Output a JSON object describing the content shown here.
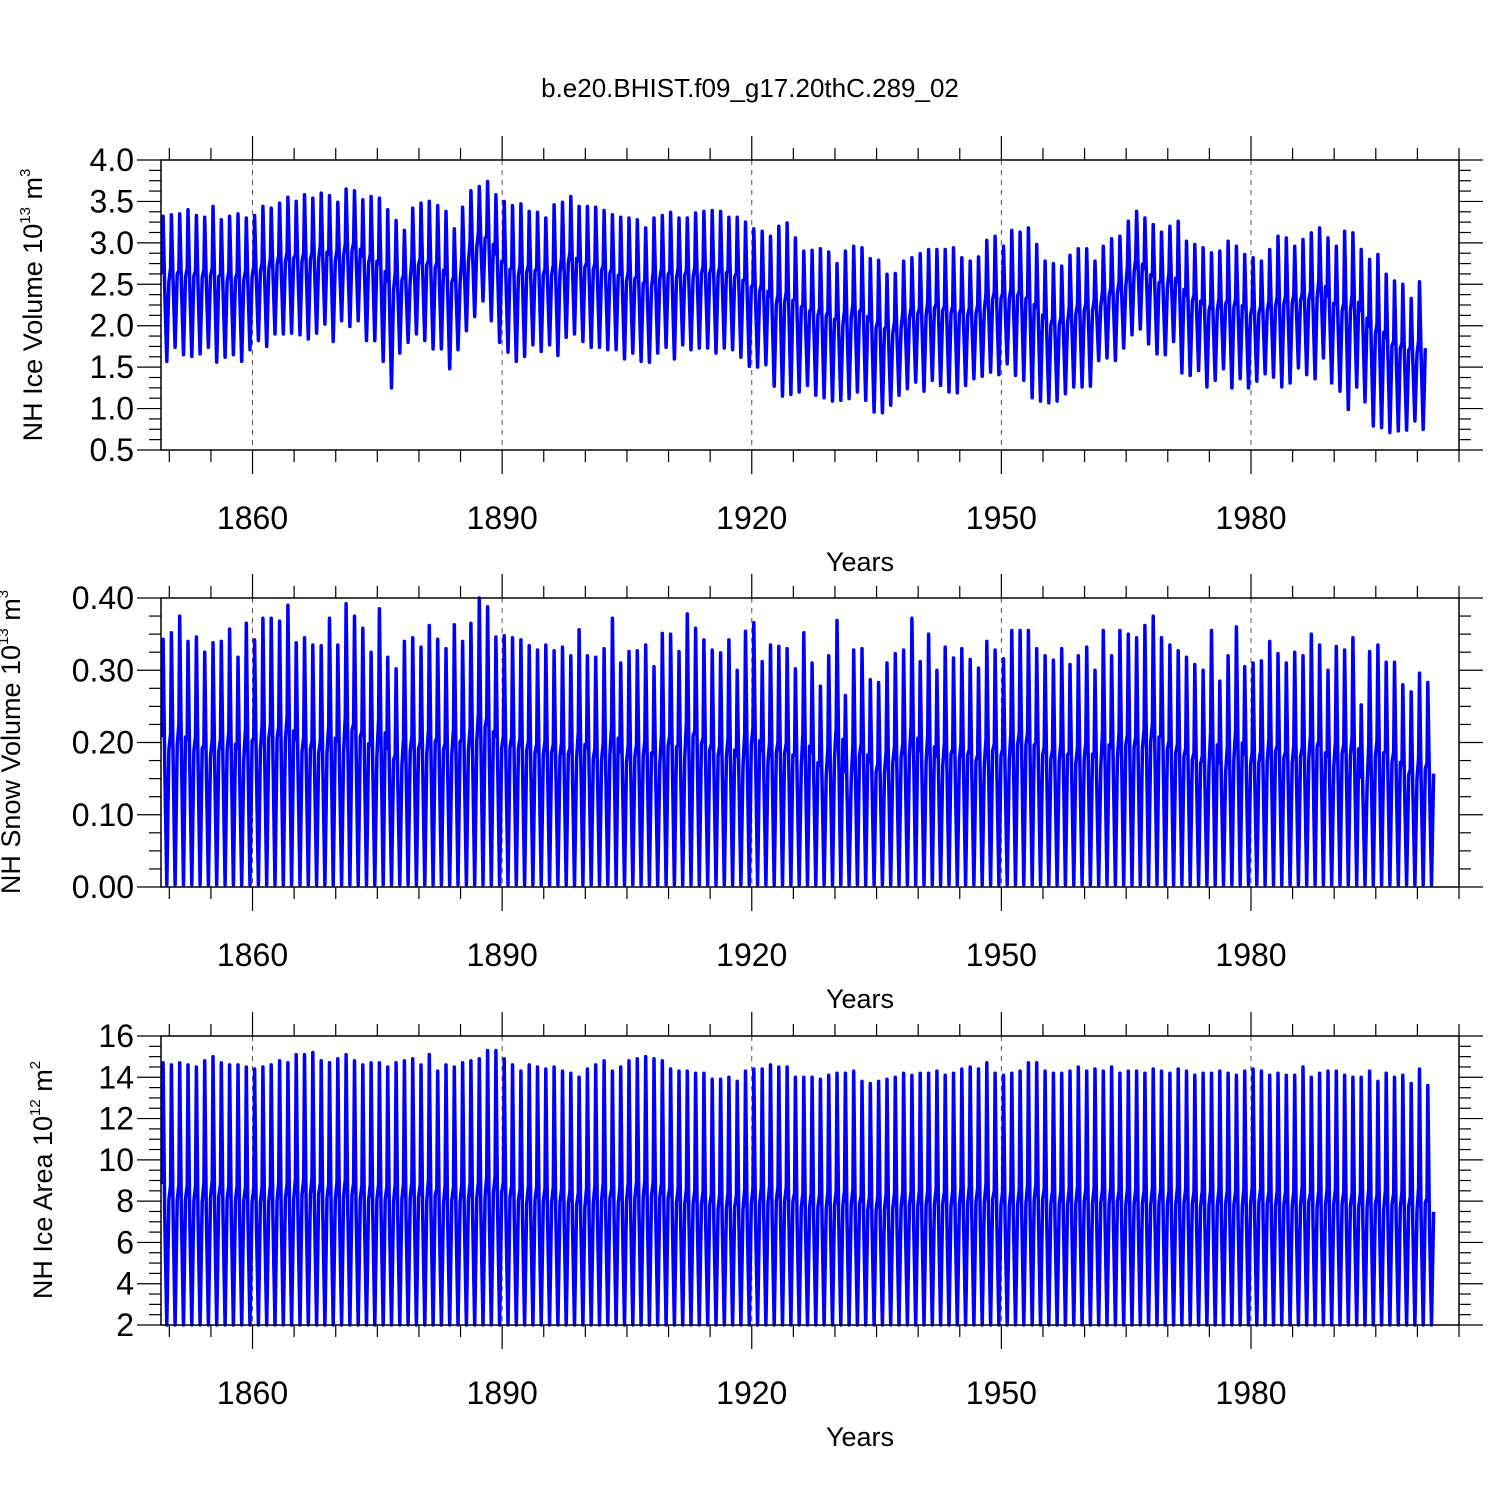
{
  "title": "b.e20.BHIST.f09_g17.20thC.289_02",
  "chart_data": [
    {
      "type": "line",
      "xlabel": "Years",
      "ylabel_prefix": "NH Ice Volume 10",
      "ylabel_exponent": "13",
      "ylabel_unit": " m",
      "ylabel_unit_exponent": "3",
      "xlim": [
        1849,
        2005
      ],
      "ylim": [
        0.5,
        4.0
      ],
      "xticks": [
        1860,
        1890,
        1920,
        1950,
        1980
      ],
      "yticks": [
        "0.5",
        "1.0",
        "1.5",
        "2.0",
        "2.5",
        "3.0",
        "3.5",
        "4.0"
      ],
      "grid": "dashed vertical lines at major x ticks",
      "line_color": "#0000ff",
      "annual_max": [
        3.32,
        3.34,
        3.35,
        3.4,
        3.33,
        3.31,
        3.44,
        3.28,
        3.32,
        3.35,
        3.3,
        3.33,
        3.44,
        3.42,
        3.48,
        3.55,
        3.5,
        3.58,
        3.54,
        3.6,
        3.57,
        3.49,
        3.65,
        3.63,
        3.52,
        3.56,
        3.54,
        3.4,
        3.27,
        3.15,
        3.42,
        3.48,
        3.5,
        3.45,
        3.38,
        3.17,
        3.43,
        3.63,
        3.68,
        3.74,
        3.58,
        3.5,
        3.45,
        3.47,
        3.38,
        3.37,
        3.3,
        3.46,
        3.49,
        3.56,
        3.44,
        3.44,
        3.43,
        3.39,
        3.34,
        3.31,
        3.3,
        3.28,
        3.18,
        3.3,
        3.33,
        3.37,
        3.3,
        3.3,
        3.36,
        3.38,
        3.39,
        3.38,
        3.31,
        3.31,
        3.25,
        3.17,
        3.14,
        3.08,
        3.2,
        3.24,
        3.06,
        2.9,
        2.91,
        2.93,
        2.89,
        2.75,
        2.9,
        2.96,
        2.94,
        2.81,
        2.79,
        2.62,
        2.63,
        2.78,
        2.82,
        2.87,
        2.92,
        2.92,
        2.92,
        2.94,
        2.82,
        2.78,
        2.83,
        3.03,
        3.08,
        2.96,
        3.15,
        3.13,
        3.18,
        2.98,
        2.78,
        2.75,
        2.72,
        2.85,
        2.93,
        2.93,
        2.78,
        2.96,
        3.05,
        3.08,
        3.26,
        3.38,
        3.3,
        3.22,
        3.13,
        3.2,
        3.26,
        3.02,
        2.98,
        2.94,
        2.88,
        2.9,
        3.02,
        2.96,
        2.86,
        2.82,
        2.78,
        2.92,
        3.08,
        3.06,
        2.96,
        3.04,
        3.12,
        3.18,
        3.06,
        2.96,
        3.14,
        3.12,
        2.92,
        2.8,
        2.86,
        2.62,
        2.54,
        2.5,
        2.33,
        2.53,
        2.61,
        2.41
      ],
      "annual_min": [
        1.57,
        1.74,
        1.65,
        1.63,
        1.66,
        1.74,
        1.56,
        1.62,
        1.65,
        1.57,
        1.71,
        1.82,
        1.75,
        1.9,
        1.9,
        1.91,
        1.89,
        1.84,
        1.91,
        2.02,
        1.81,
        2.06,
        1.99,
        2.06,
        1.82,
        1.82,
        1.57,
        1.25,
        1.67,
        1.8,
        1.9,
        1.82,
        1.72,
        1.72,
        1.48,
        1.71,
        1.94,
        2.11,
        2.3,
        2.06,
        1.8,
        1.68,
        1.57,
        1.63,
        1.77,
        1.69,
        1.77,
        1.64,
        1.86,
        1.9,
        1.81,
        1.74,
        1.74,
        1.71,
        1.71,
        1.6,
        1.67,
        1.57,
        1.56,
        1.67,
        1.74,
        1.6,
        1.77,
        1.71,
        1.73,
        1.73,
        1.67,
        1.73,
        1.71,
        1.62,
        1.51,
        1.5,
        1.53,
        1.27,
        1.15,
        1.17,
        1.2,
        1.28,
        1.16,
        1.13,
        1.09,
        1.1,
        1.12,
        1.2,
        1.1,
        0.96,
        0.95,
        1.04,
        1.16,
        1.24,
        1.32,
        1.21,
        1.34,
        1.28,
        1.2,
        1.19,
        1.28,
        1.36,
        1.39,
        1.44,
        1.41,
        1.54,
        1.4,
        1.34,
        1.13,
        1.09,
        1.07,
        1.09,
        1.18,
        1.26,
        1.26,
        1.27,
        1.58,
        1.61,
        1.58,
        1.73,
        1.89,
        1.96,
        1.78,
        1.66,
        1.65,
        1.81,
        1.43,
        1.4,
        1.46,
        1.26,
        1.34,
        1.48,
        1.25,
        1.36,
        1.25,
        1.33,
        1.42,
        1.38,
        1.26,
        1.31,
        1.49,
        1.41,
        1.36,
        1.61,
        1.31,
        1.21,
        0.99,
        1.26,
        1.08,
        0.79,
        0.77,
        0.71,
        0.73,
        0.74,
        0.85,
        0.75
      ]
    },
    {
      "type": "line",
      "xlabel": "Years",
      "ylabel_prefix": "NH Snow Volume 10",
      "ylabel_exponent": "13",
      "ylabel_unit": " m",
      "ylabel_unit_exponent": "3",
      "xlim": [
        1849,
        2005
      ],
      "ylim": [
        0.0,
        0.4
      ],
      "xticks": [
        1860,
        1890,
        1920,
        1950,
        1980
      ],
      "yticks": [
        "0.00",
        "0.10",
        "0.20",
        "0.30",
        "0.40"
      ],
      "grid": "dashed vertical lines at major x ticks",
      "line_color": "#0000ff",
      "annual_max": [
        0.343,
        0.352,
        0.375,
        0.34,
        0.346,
        0.325,
        0.338,
        0.34,
        0.357,
        0.318,
        0.365,
        0.342,
        0.372,
        0.372,
        0.368,
        0.39,
        0.338,
        0.345,
        0.335,
        0.334,
        0.372,
        0.335,
        0.392,
        0.375,
        0.358,
        0.325,
        0.385,
        0.318,
        0.302,
        0.34,
        0.345,
        0.332,
        0.362,
        0.343,
        0.33,
        0.363,
        0.34,
        0.365,
        0.4,
        0.388,
        0.346,
        0.348,
        0.345,
        0.342,
        0.334,
        0.328,
        0.335,
        0.327,
        0.332,
        0.32,
        0.356,
        0.32,
        0.318,
        0.33,
        0.372,
        0.31,
        0.326,
        0.327,
        0.335,
        0.305,
        0.351,
        0.35,
        0.326,
        0.378,
        0.358,
        0.342,
        0.328,
        0.324,
        0.342,
        0.3,
        0.354,
        0.366,
        0.312,
        0.335,
        0.333,
        0.33,
        0.302,
        0.352,
        0.31,
        0.278,
        0.32,
        0.369,
        0.265,
        0.328,
        0.33,
        0.287,
        0.283,
        0.31,
        0.323,
        0.328,
        0.372,
        0.312,
        0.35,
        0.3,
        0.332,
        0.317,
        0.33,
        0.315,
        0.303,
        0.34,
        0.328,
        0.316,
        0.355,
        0.355,
        0.355,
        0.33,
        0.32,
        0.314,
        0.33,
        0.308,
        0.32,
        0.332,
        0.3,
        0.355,
        0.32,
        0.355,
        0.35,
        0.345,
        0.362,
        0.375,
        0.345,
        0.335,
        0.327,
        0.318,
        0.308,
        0.3,
        0.355,
        0.285,
        0.32,
        0.36,
        0.305,
        0.31,
        0.313,
        0.34,
        0.323,
        0.31,
        0.325,
        0.32,
        0.35,
        0.335,
        0.3,
        0.333,
        0.328,
        0.345,
        0.252,
        0.326,
        0.335,
        0.311,
        0.311,
        0.28,
        0.27,
        0.296,
        0.283
      ]
    },
    {
      "type": "line",
      "xlabel": "Years",
      "ylabel_prefix": "NH Ice Area 10",
      "ylabel_exponent": "12",
      "ylabel_unit": " m",
      "ylabel_unit_exponent": "2",
      "xlim": [
        1849,
        2005
      ],
      "ylim": [
        2,
        16
      ],
      "xticks": [
        1860,
        1890,
        1920,
        1950,
        1980
      ],
      "yticks": [
        "2",
        "4",
        "6",
        "8",
        "10",
        "12",
        "14",
        "16"
      ],
      "grid": "dashed vertical lines at major x ticks",
      "line_color": "#0000ff",
      "annual_max": [
        14.7,
        14.6,
        14.7,
        14.6,
        14.5,
        14.8,
        15.0,
        14.7,
        14.6,
        14.6,
        14.5,
        14.4,
        14.5,
        14.6,
        14.8,
        14.7,
        15.1,
        15.1,
        15.2,
        14.8,
        14.7,
        14.9,
        15.1,
        14.8,
        14.6,
        14.7,
        14.7,
        14.5,
        14.7,
        14.8,
        14.9,
        14.6,
        15.1,
        14.3,
        14.6,
        14.5,
        14.7,
        14.8,
        14.9,
        15.3,
        15.3,
        14.9,
        14.6,
        14.3,
        14.6,
        14.5,
        14.4,
        14.5,
        14.3,
        14.2,
        14.0,
        14.4,
        14.6,
        14.8,
        14.3,
        14.5,
        14.8,
        14.9,
        15.0,
        14.9,
        14.8,
        14.4,
        14.3,
        14.3,
        14.2,
        14.2,
        13.9,
        13.9,
        14.0,
        13.8,
        14.3,
        14.4,
        14.4,
        14.6,
        14.5,
        14.5,
        14.0,
        14.0,
        14.0,
        13.9,
        14.1,
        14.2,
        14.2,
        14.3,
        13.8,
        13.7,
        13.8,
        13.9,
        14.0,
        14.2,
        14.1,
        14.2,
        14.2,
        14.3,
        14.1,
        14.2,
        14.4,
        14.5,
        14.4,
        14.7,
        14.2,
        14.1,
        14.2,
        14.3,
        14.7,
        14.7,
        14.3,
        14.2,
        14.2,
        14.3,
        14.5,
        14.3,
        14.4,
        14.3,
        14.5,
        14.2,
        14.3,
        14.3,
        14.2,
        14.4,
        14.3,
        14.2,
        14.4,
        14.3,
        14.1,
        14.2,
        14.2,
        14.3,
        14.2,
        14.1,
        14.3,
        14.4,
        14.3,
        14.1,
        14.2,
        14.1,
        14.1,
        14.5,
        14.0,
        14.2,
        14.3,
        14.3,
        14.1,
        14.0,
        14.0,
        14.3,
        13.8,
        14.2,
        14.0,
        14.1,
        13.7,
        14.4,
        13.6
      ]
    }
  ]
}
